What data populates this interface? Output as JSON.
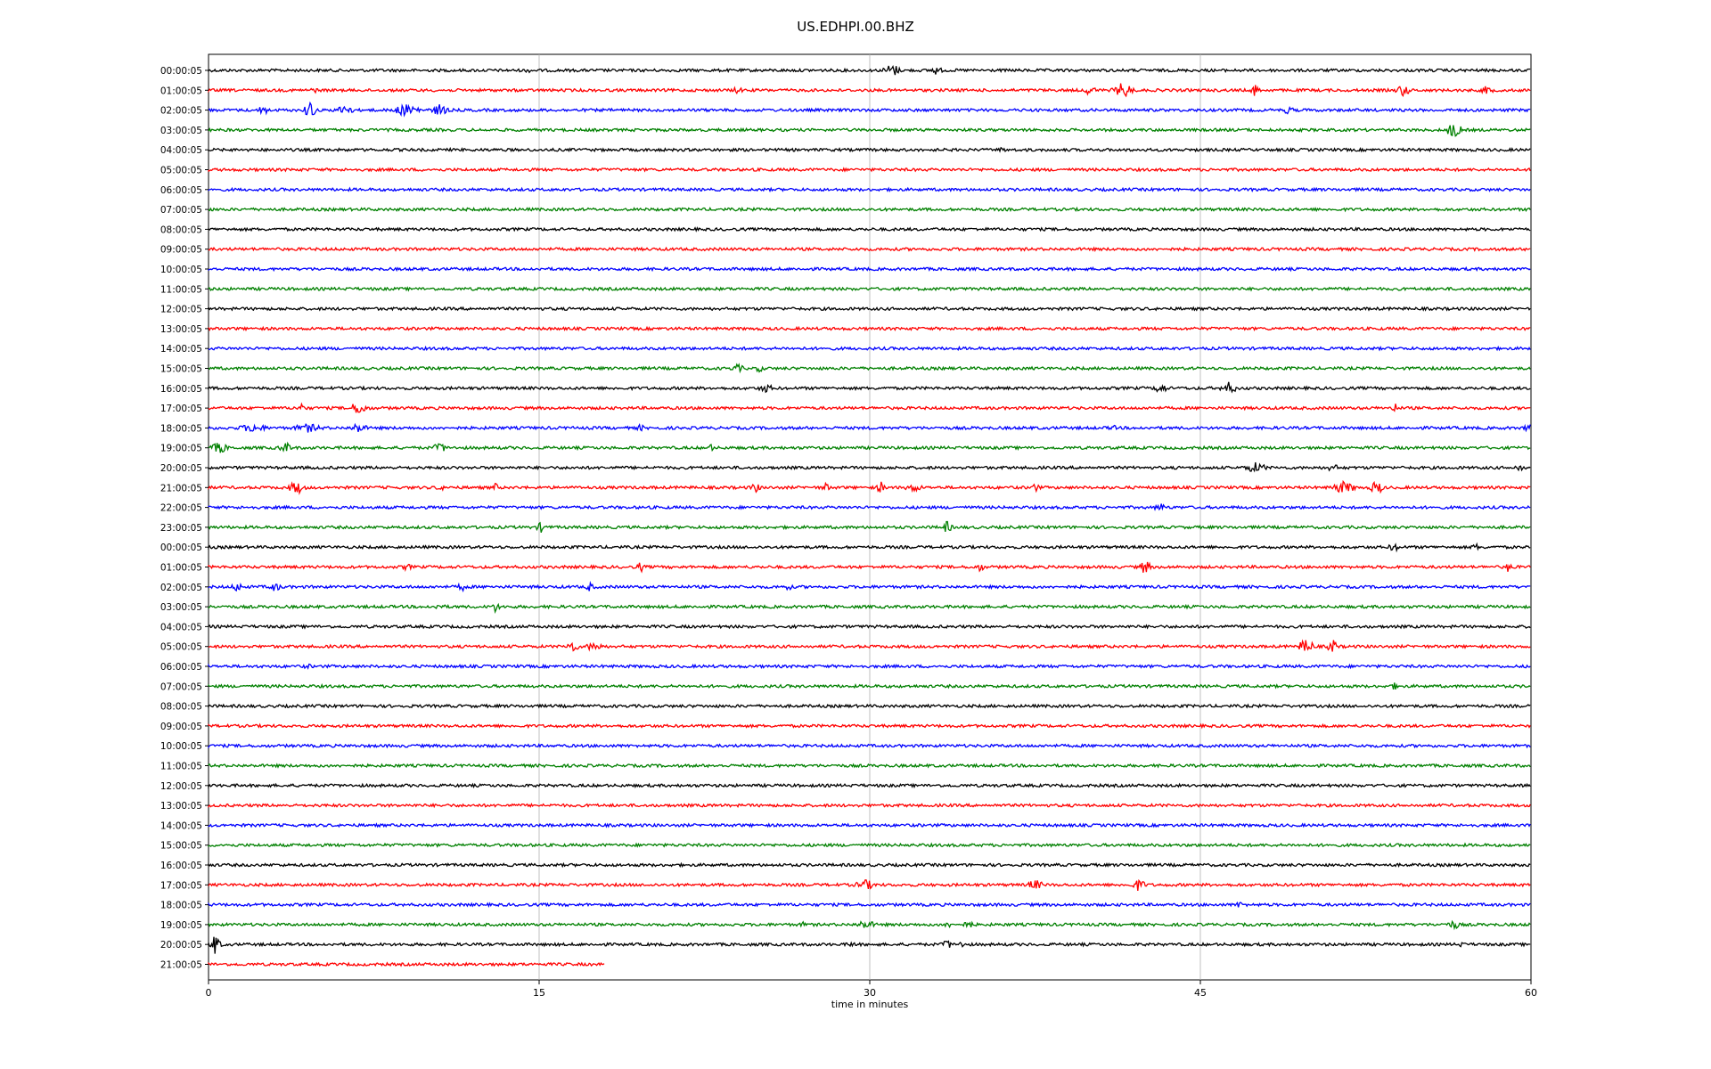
{
  "chart_data": {
    "type": "line",
    "title": "US.EDHPI.00.BHZ",
    "xlabel": "time in minutes",
    "ylabel": "",
    "xlim": [
      0,
      60
    ],
    "x_ticks": [
      0,
      15,
      30,
      45,
      60
    ],
    "grid": "vertical lines at x ticks",
    "trace_colors": [
      "#000000",
      "#ff0000",
      "#0000ff",
      "#008000"
    ],
    "row_labels": [
      "00:00:05",
      "01:00:05",
      "02:00:05",
      "03:00:05",
      "04:00:05",
      "05:00:05",
      "06:00:05",
      "07:00:05",
      "08:00:05",
      "09:00:05",
      "10:00:05",
      "11:00:05",
      "12:00:05",
      "13:00:05",
      "14:00:05",
      "15:00:05",
      "16:00:05",
      "17:00:05",
      "18:00:05",
      "19:00:05",
      "20:00:05",
      "21:00:05",
      "22:00:05",
      "23:00:05",
      "00:00:05",
      "01:00:05",
      "02:00:05",
      "03:00:05",
      "04:00:05",
      "05:00:05",
      "06:00:05",
      "07:00:05",
      "08:00:05",
      "09:00:05",
      "10:00:05",
      "11:00:05",
      "12:00:05",
      "13:00:05",
      "14:00:05",
      "15:00:05",
      "16:00:05",
      "17:00:05",
      "18:00:05",
      "19:00:05",
      "20:00:05",
      "21:00:05"
    ],
    "last_row_end_minute": 18,
    "bursts": [
      [
        [
          14.5,
          1.5,
          3
        ],
        [
          31,
          7,
          6
        ],
        [
          33,
          4,
          4
        ]
      ],
      [
        [
          4.8,
          2,
          3
        ],
        [
          24,
          3,
          3
        ],
        [
          40,
          5,
          4
        ],
        [
          41.5,
          8,
          8
        ],
        [
          47.5,
          7,
          2
        ],
        [
          54.2,
          6,
          5
        ],
        [
          58,
          4,
          4
        ]
      ],
      [
        [
          2.5,
          8,
          2
        ],
        [
          4.6,
          12,
          3
        ],
        [
          6.2,
          7,
          5
        ],
        [
          9,
          6,
          12
        ],
        [
          10.5,
          6,
          6
        ],
        [
          49,
          4,
          3
        ]
      ],
      [
        [
          56.5,
          8,
          6
        ]
      ],
      [
        [
          36,
          2,
          2
        ]
      ],
      [],
      [],
      [],
      [],
      [],
      [],
      [],
      [],
      [],
      [],
      [
        [
          24,
          4,
          4
        ],
        [
          25,
          3,
          3
        ]
      ],
      [
        [
          25.3,
          4,
          5
        ],
        [
          43.2,
          6,
          4
        ],
        [
          46.3,
          6,
          6
        ]
      ],
      [
        [
          4.2,
          4,
          4
        ],
        [
          6.8,
          6,
          8
        ],
        [
          53.8,
          6,
          1
        ]
      ],
      [
        [
          2,
          4,
          12
        ],
        [
          4.5,
          4,
          12
        ],
        [
          6.8,
          5,
          6
        ],
        [
          19.6,
          3,
          2
        ],
        [
          41,
          3,
          2
        ],
        [
          59.9,
          6,
          3
        ]
      ],
      [
        [
          0.5,
          6,
          6
        ],
        [
          3.5,
          5,
          5
        ],
        [
          10.5,
          5,
          5
        ],
        [
          22.8,
          3,
          2
        ]
      ],
      [
        [
          47.5,
          5,
          9
        ],
        [
          51,
          3,
          6
        ],
        [
          59.5,
          4,
          3
        ]
      ],
      [
        [
          4,
          7,
          6
        ],
        [
          10.5,
          3,
          2
        ],
        [
          13,
          4,
          2
        ],
        [
          24.8,
          5,
          3
        ],
        [
          28,
          4,
          3
        ],
        [
          30.5,
          6,
          2
        ],
        [
          32,
          4,
          6
        ],
        [
          37.5,
          4,
          3
        ],
        [
          51.5,
          6,
          10
        ],
        [
          53,
          8,
          4
        ]
      ],
      [
        [
          43.2,
          4,
          4
        ]
      ],
      [
        [
          15.1,
          5,
          3
        ],
        [
          33.5,
          6,
          3
        ]
      ],
      [
        [
          53.8,
          4,
          4
        ],
        [
          57.5,
          3,
          3
        ]
      ],
      [
        [
          9,
          3,
          3
        ],
        [
          19.6,
          5,
          2
        ],
        [
          35,
          4,
          3
        ],
        [
          42.5,
          8,
          3
        ],
        [
          59,
          6,
          2
        ]
      ],
      [
        [
          1.3,
          5,
          3
        ],
        [
          3,
          4,
          5
        ],
        [
          11.5,
          4,
          3
        ],
        [
          17.3,
          4,
          3
        ],
        [
          26.3,
          3,
          2
        ]
      ],
      [
        [
          10.5,
          3,
          3
        ],
        [
          13,
          5,
          3
        ]
      ],
      [],
      [
        [
          16.5,
          6,
          4
        ],
        [
          17.5,
          4,
          8
        ],
        [
          49.8,
          8,
          6
        ],
        [
          51,
          8,
          3
        ]
      ],
      [
        [
          4.5,
          2,
          2
        ]
      ],
      [
        [
          53.8,
          3,
          3
        ]
      ],
      [],
      [],
      [],
      [],
      [],
      [],
      [],
      [],
      [],
      [
        [
          29.8,
          5,
          8
        ],
        [
          37.5,
          5,
          6
        ],
        [
          42.2,
          6,
          5
        ]
      ],
      [
        [
          46.8,
          3,
          3
        ]
      ],
      [
        [
          27,
          2,
          3
        ],
        [
          29.8,
          4,
          8
        ],
        [
          33.5,
          3,
          3
        ],
        [
          34.5,
          4,
          3
        ],
        [
          56.5,
          4,
          5
        ]
      ],
      [
        [
          0.3,
          10,
          4
        ],
        [
          29.2,
          3,
          2
        ],
        [
          33.5,
          5,
          3
        ],
        [
          34.2,
          3,
          2
        ],
        [
          56.8,
          2,
          3
        ]
      ],
      []
    ]
  }
}
